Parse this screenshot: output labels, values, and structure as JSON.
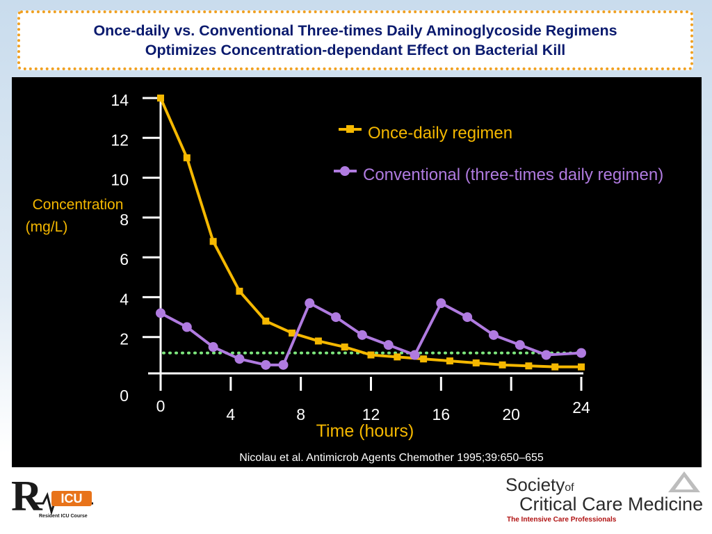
{
  "slide": {
    "title_line1": "Once-daily vs. Conventional Three-times Daily Aminoglycoside Regimens",
    "title_line2": "Optimizes Concentration-dependant Effect on Bacterial Kill",
    "citation": "Nicolau et al. Antimicrob Agents Chemother 1995;39:650–655"
  },
  "colors": {
    "once_daily": "#f5b800",
    "conventional": "#b07be0",
    "threshold": "#7ee87e",
    "ylabel": "#f5b800",
    "xlabel": "#f5b800",
    "axis": "#ffffff",
    "title": "#0a1a6e"
  },
  "chart_data": {
    "type": "line",
    "title": "",
    "ylabel_line1": "Concentration",
    "ylabel_line2": "(mg/L)",
    "xlabel": "Time (hours)",
    "ylim": [
      0,
      14
    ],
    "xlim": [
      0,
      24
    ],
    "y_ticks": [
      "0",
      "2",
      "4",
      "6",
      "8",
      "10",
      "12",
      "14"
    ],
    "x_ticks": [
      "0",
      "4",
      "8",
      "12",
      "16",
      "20",
      "24"
    ],
    "series": [
      {
        "name": "Once-daily regimen",
        "marker": "square",
        "x": [
          0,
          1.5,
          3,
          4.5,
          6,
          7.5,
          9,
          10.5,
          12,
          13.5,
          15,
          16.5,
          18,
          19.5,
          21,
          22.5,
          24
        ],
        "y": [
          14,
          11,
          6.8,
          4.3,
          2.8,
          2.2,
          1.8,
          1.5,
          1.1,
          1.0,
          0.9,
          0.8,
          0.7,
          0.6,
          0.55,
          0.5,
          0.5
        ]
      },
      {
        "name": "Conventional (three-times daily regimen)",
        "marker": "circle",
        "x": [
          0,
          1.5,
          3,
          4.5,
          6,
          7,
          8.5,
          10,
          11.5,
          13,
          14.5,
          16,
          17.5,
          19,
          20.5,
          22,
          24
        ],
        "y": [
          3.2,
          2.5,
          1.5,
          0.9,
          0.6,
          0.6,
          3.7,
          3.0,
          2.1,
          1.6,
          1.1,
          3.7,
          3.0,
          2.1,
          1.6,
          1.1,
          1.2
        ]
      }
    ],
    "threshold": {
      "y": 1.2,
      "style": "dotted"
    },
    "legend_position": "top-right"
  },
  "footer": {
    "ricu_logo_letters": "RICU",
    "ricu_caption": "Resident ICU Course",
    "sccm_society": "Society",
    "sccm_of": "of",
    "sccm_name": "Critical Care Medicine",
    "sccm_tagline": "The Intensive Care Professionals"
  }
}
